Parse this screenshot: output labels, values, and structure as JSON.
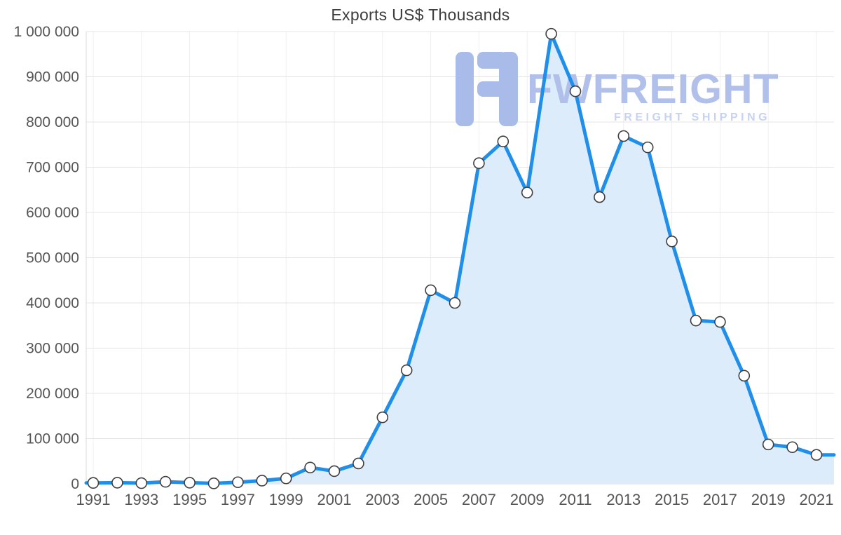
{
  "chart_data": {
    "type": "area",
    "title": "Exports US$ Thousands",
    "xlabel": "",
    "ylabel": "",
    "x": [
      1991,
      1992,
      1993,
      1994,
      1995,
      1996,
      1997,
      1998,
      1999,
      2000,
      2001,
      2002,
      2003,
      2004,
      2005,
      2006,
      2007,
      2008,
      2009,
      2010,
      2011,
      2012,
      2013,
      2014,
      2015,
      2016,
      2017,
      2018,
      2019,
      2020,
      2021
    ],
    "values": [
      2000,
      2500,
      1500,
      4500,
      2500,
      1000,
      3500,
      7000,
      12000,
      36000,
      28000,
      45000,
      147000,
      251000,
      428000,
      400000,
      709000,
      757000,
      644000,
      995000,
      868000,
      634000,
      769000,
      744000,
      536000,
      361000,
      358000,
      239000,
      87000,
      81000,
      64000
    ],
    "ylim": [
      0,
      1000000
    ],
    "ytick_step": 100000,
    "xtick_every": 2,
    "grid": true,
    "legend": "none",
    "marker": "circle",
    "colors": {
      "line": "#1f8fea",
      "fill": "#ddecfb",
      "marker_fill": "#ffffff",
      "marker_stroke": "#3f3f3f",
      "grid": "#e4e4e4",
      "grid_vertical": "#efefef",
      "axis_line": "#d8d8d8",
      "axis_text": "#555555",
      "title_text": "#3d3d3d"
    }
  },
  "watermark": {
    "brand": "FWFREIGHT",
    "tagline": "FREIGHT SHIPPING",
    "mark_color": "#a9bce9",
    "brand_color": "#b0c0ea",
    "tagline_color": "#c6d3f1"
  }
}
